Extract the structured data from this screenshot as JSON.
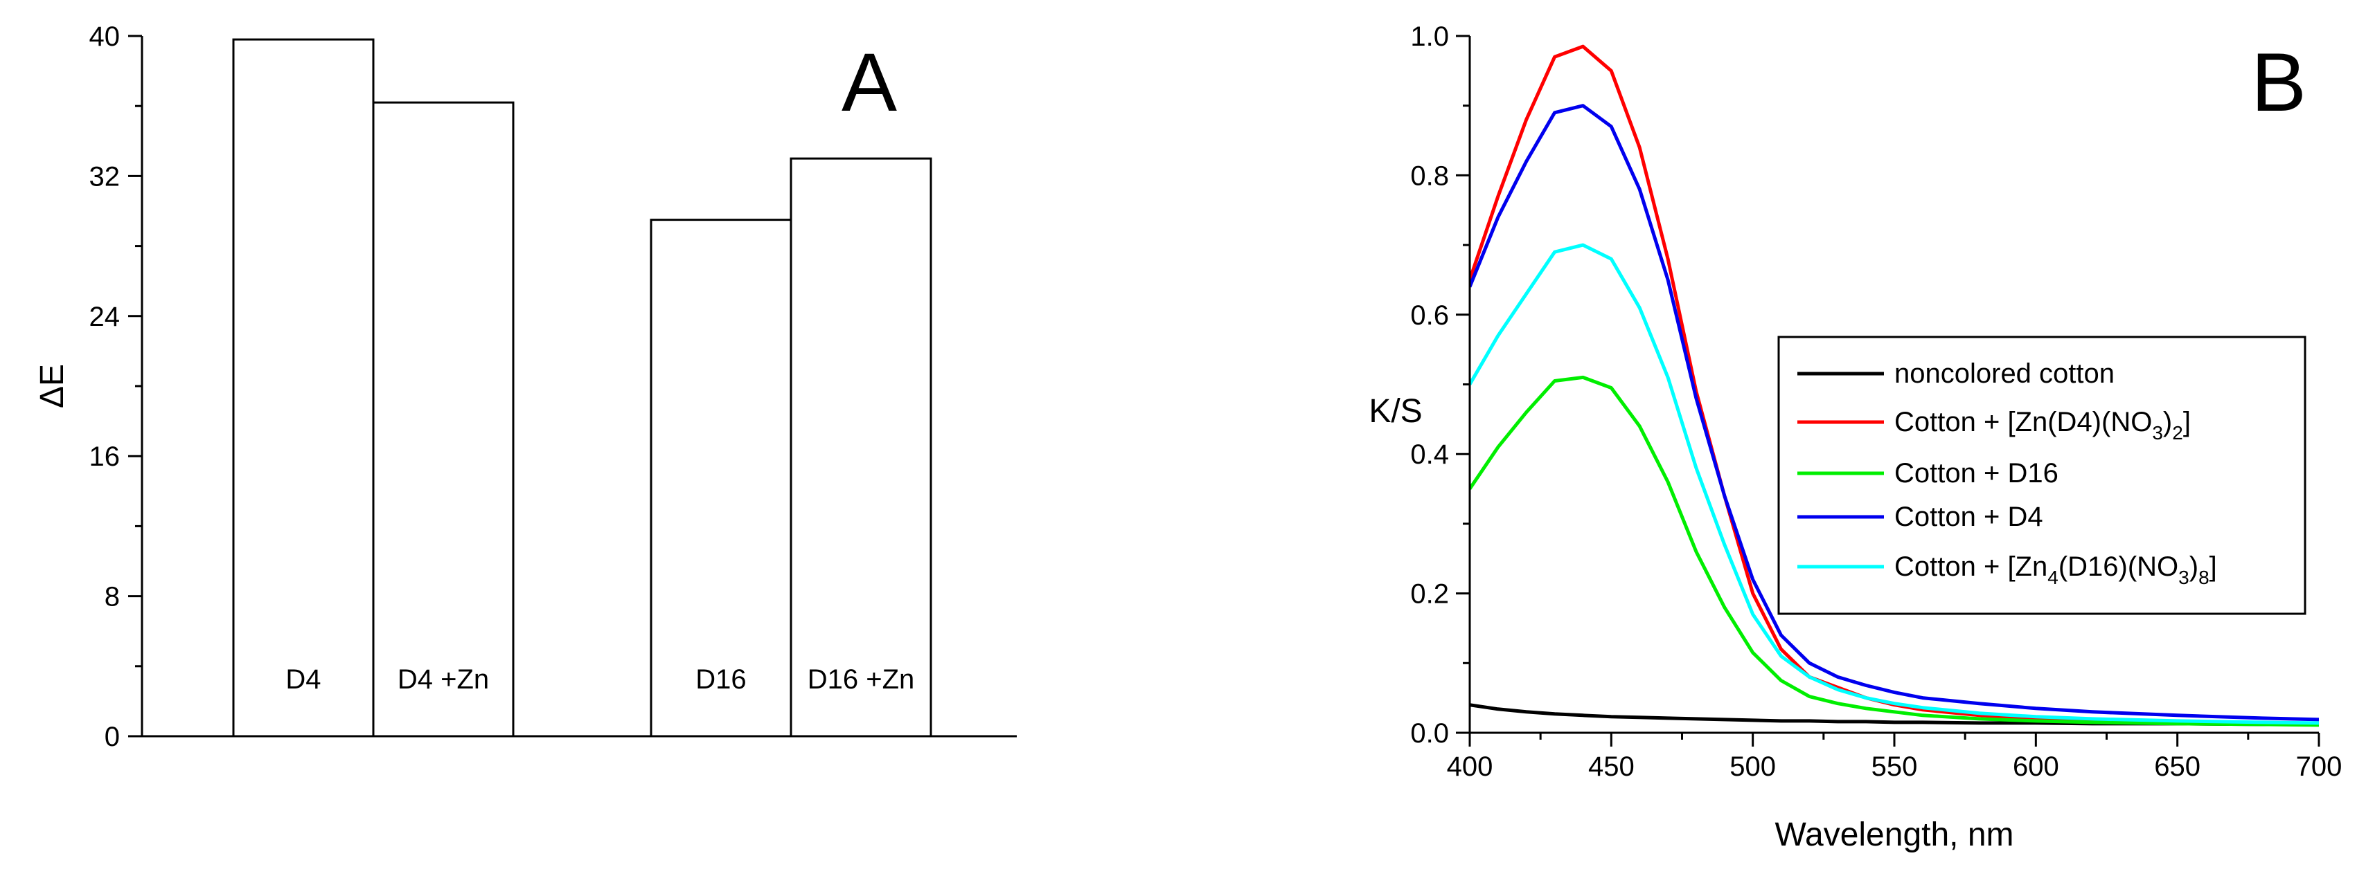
{
  "chart_data": [
    {
      "type": "bar",
      "panel_label": "A",
      "categories": [
        "D4",
        "D4 +Zn",
        "D16",
        "D16 +Zn"
      ],
      "values": [
        39.8,
        36.2,
        29.5,
        33.0
      ],
      "groups": [
        [
          "D4",
          "D4 +Zn"
        ],
        [
          "D16",
          "D16 +Zn"
        ]
      ],
      "title": "",
      "xlabel": "",
      "ylabel": "ΔE",
      "ylim": [
        0,
        40
      ],
      "yticks": [
        "0",
        "8",
        "16",
        "24",
        "32",
        "40"
      ],
      "bar_fill": "#ffffff",
      "bar_stroke": "#000000"
    },
    {
      "type": "line",
      "panel_label": "B",
      "title": "",
      "xlabel": "Wavelength, nm",
      "ylabel": "K/S",
      "xlim": [
        400,
        700
      ],
      "ylim": [
        0,
        1.0
      ],
      "xticks": [
        "400",
        "450",
        "500",
        "550",
        "600",
        "650",
        "700"
      ],
      "yticks": [
        "0.0",
        "0.2",
        "0.4",
        "0.6",
        "0.8",
        "1.0"
      ],
      "legend_position": "right-middle",
      "series": [
        {
          "name": "noncolored cotton",
          "color": "#000000",
          "legend": {
            "parts": [
              {
                "t": "noncolored cotton"
              }
            ]
          },
          "x": [
            400,
            410,
            420,
            430,
            440,
            450,
            460,
            470,
            480,
            490,
            500,
            510,
            520,
            530,
            540,
            550,
            560,
            580,
            600,
            620,
            650,
            680,
            700
          ],
          "y": [
            0.04,
            0.034,
            0.03,
            0.027,
            0.025,
            0.023,
            0.022,
            0.021,
            0.02,
            0.019,
            0.018,
            0.017,
            0.017,
            0.016,
            0.016,
            0.015,
            0.015,
            0.014,
            0.014,
            0.013,
            0.013,
            0.012,
            0.012
          ]
        },
        {
          "name": "Cotton + [Zn(D4)(NO3)2]",
          "color": "#ff0000",
          "legend": {
            "parts": [
              {
                "t": "Cotton + [Zn(D4)(NO"
              },
              {
                "t": "3",
                "sub": true
              },
              {
                "t": ")"
              },
              {
                "t": "2",
                "sub": true
              },
              {
                "t": "]"
              }
            ]
          },
          "x": [
            400,
            410,
            420,
            430,
            440,
            450,
            460,
            470,
            480,
            490,
            500,
            510,
            520,
            530,
            540,
            550,
            560,
            580,
            600,
            620,
            650,
            680,
            700
          ],
          "y": [
            0.65,
            0.77,
            0.88,
            0.97,
            0.985,
            0.95,
            0.84,
            0.68,
            0.49,
            0.34,
            0.2,
            0.12,
            0.08,
            0.065,
            0.05,
            0.04,
            0.033,
            0.025,
            0.02,
            0.018,
            0.015,
            0.013,
            0.012
          ]
        },
        {
          "name": "Cotton + D16",
          "color": "#00ee00",
          "legend": {
            "parts": [
              {
                "t": "Cotton + D16"
              }
            ]
          },
          "x": [
            400,
            410,
            420,
            430,
            440,
            450,
            460,
            470,
            480,
            490,
            500,
            510,
            520,
            530,
            540,
            550,
            560,
            580,
            600,
            620,
            650,
            680,
            700
          ],
          "y": [
            0.35,
            0.41,
            0.46,
            0.505,
            0.51,
            0.495,
            0.44,
            0.36,
            0.26,
            0.18,
            0.115,
            0.075,
            0.052,
            0.042,
            0.035,
            0.03,
            0.025,
            0.02,
            0.017,
            0.015,
            0.013,
            0.012,
            0.011
          ]
        },
        {
          "name": "Cotton + D4",
          "color": "#0000ee",
          "legend": {
            "parts": [
              {
                "t": "Cotton + D4"
              }
            ]
          },
          "x": [
            400,
            410,
            420,
            430,
            440,
            450,
            460,
            470,
            480,
            490,
            500,
            510,
            520,
            530,
            540,
            550,
            560,
            580,
            600,
            620,
            650,
            680,
            700
          ],
          "y": [
            0.64,
            0.74,
            0.82,
            0.89,
            0.9,
            0.87,
            0.78,
            0.65,
            0.48,
            0.34,
            0.22,
            0.14,
            0.1,
            0.08,
            0.068,
            0.058,
            0.05,
            0.042,
            0.035,
            0.03,
            0.025,
            0.021,
            0.019
          ]
        },
        {
          "name": "Cotton + [Zn4(D16)(NO3)8]",
          "color": "#00ffff",
          "legend": {
            "parts": [
              {
                "t": " Cotton + [Zn"
              },
              {
                "t": "4",
                "sub": true
              },
              {
                "t": "(D16)(NO"
              },
              {
                "t": "3",
                "sub": true
              },
              {
                "t": ")"
              },
              {
                "t": "8",
                "sub": true
              },
              {
                "t": "]"
              }
            ]
          },
          "x": [
            400,
            410,
            420,
            430,
            440,
            450,
            460,
            470,
            480,
            490,
            500,
            510,
            520,
            530,
            540,
            550,
            560,
            580,
            600,
            620,
            650,
            680,
            700
          ],
          "y": [
            0.5,
            0.57,
            0.63,
            0.69,
            0.7,
            0.68,
            0.61,
            0.51,
            0.38,
            0.27,
            0.17,
            0.11,
            0.08,
            0.062,
            0.05,
            0.042,
            0.036,
            0.028,
            0.023,
            0.02,
            0.017,
            0.015,
            0.014
          ]
        }
      ]
    }
  ]
}
